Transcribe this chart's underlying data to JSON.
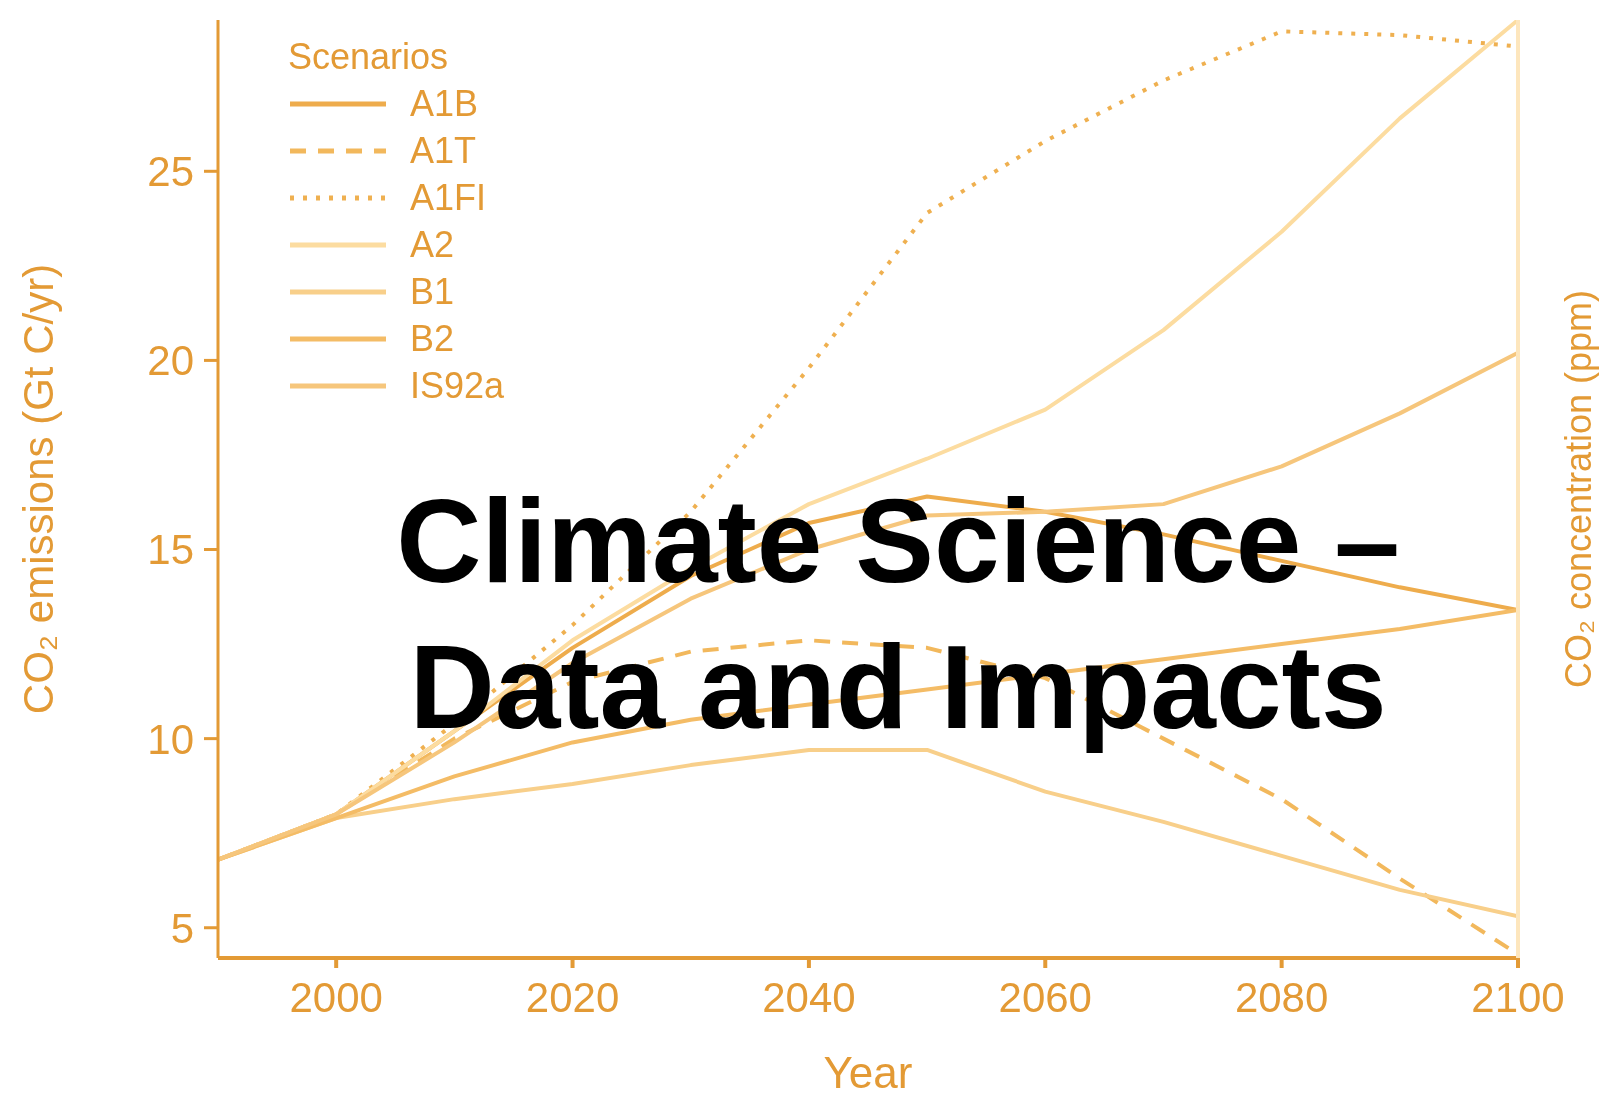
{
  "chart_data": {
    "type": "line",
    "title": "Climate Science – Data and Impacts",
    "xlabel": "Year",
    "ylabel": "CO₂ emissions (Gt C/yr)",
    "y2label": "CO₂ concentration (ppm)",
    "legend_title": "Scenarios",
    "legend": "top left",
    "grid": false,
    "marker": "none",
    "x": [
      1990,
      2000,
      2010,
      2020,
      2030,
      2040,
      2050,
      2060,
      2070,
      2080,
      2090,
      2100
    ],
    "xlim": [
      1990,
      2100
    ],
    "xticks": [
      2000,
      2020,
      2040,
      2060,
      2080,
      2100
    ],
    "ylim": [
      4.2,
      29
    ],
    "yticks": [
      5,
      10,
      15,
      20,
      25
    ],
    "series": [
      {
        "name": "A1B",
        "color": "#eeac4c",
        "line_style": "solid",
        "values": [
          6.8,
          8.0,
          10.2,
          12.4,
          14.3,
          15.7,
          16.4,
          16.0,
          15.4,
          14.7,
          14.0,
          13.4
        ]
      },
      {
        "name": "A1T",
        "color": "#f2b85c",
        "line_style": "dashed",
        "values": [
          6.8,
          8.0,
          10.0,
          11.5,
          12.3,
          12.6,
          12.4,
          11.6,
          10.0,
          8.4,
          6.3,
          4.3
        ]
      },
      {
        "name": "A1FI",
        "color": "#efb050",
        "line_style": "dotted",
        "values": [
          6.8,
          8.0,
          10.4,
          13.0,
          16.0,
          19.8,
          23.9,
          25.8,
          27.4,
          28.7,
          28.6,
          28.3
        ]
      },
      {
        "name": "A2",
        "color": "#fcdca0",
        "line_style": "solid",
        "values": [
          6.8,
          8.0,
          10.2,
          12.6,
          14.5,
          16.2,
          17.4,
          18.7,
          20.8,
          23.4,
          26.4,
          29.0
        ]
      },
      {
        "name": "B1",
        "color": "#f8cf8a",
        "line_style": "solid",
        "values": [
          6.8,
          7.9,
          8.4,
          8.8,
          9.3,
          9.7,
          9.7,
          8.6,
          7.8,
          6.9,
          6.0,
          5.3
        ]
      },
      {
        "name": "B2",
        "color": "#f4bc66",
        "line_style": "solid",
        "values": [
          6.8,
          7.9,
          9.0,
          9.9,
          10.5,
          10.9,
          11.3,
          11.7,
          12.1,
          12.5,
          12.9,
          13.4
        ]
      },
      {
        "name": "IS92a",
        "color": "#f6c67c",
        "line_style": "solid",
        "values": [
          6.8,
          8.0,
          9.9,
          12.0,
          13.7,
          15.0,
          15.9,
          16.0,
          16.2,
          17.2,
          18.6,
          20.2
        ]
      }
    ]
  }
}
